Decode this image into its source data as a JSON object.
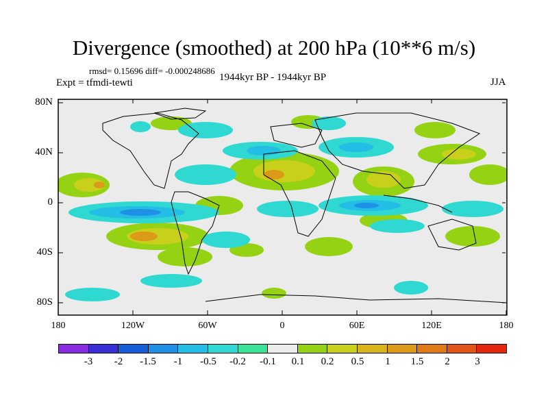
{
  "title": "Divergence (smoothed) at 200 hPa (10**6 m/s)",
  "stats": "rmsd= 0.15696 diff= -0.000248686",
  "experiment": "Expt = tfmdi-tewti",
  "period": "1944kyr BP - 1944kyr BP",
  "season": "JJA",
  "y_axis_labels": [
    "80N",
    "40N",
    "0",
    "40S",
    "80S"
  ],
  "x_axis_labels": [
    "180",
    "120W",
    "60W",
    "0",
    "60E",
    "120E",
    "180"
  ],
  "colorbar": {
    "colors": [
      "#8a2be2",
      "#3a2fd6",
      "#1560d8",
      "#1e90e6",
      "#23bde6",
      "#2fd8d0",
      "#3ae29a",
      "#ebebeb",
      "#96d214",
      "#c8d01c",
      "#d8b41a",
      "#dc9a18",
      "#df7a17",
      "#e25516",
      "#e3280f"
    ],
    "labels": [
      "-3",
      "-2",
      "-1.5",
      "-1",
      "-0.5",
      "-0.2",
      "-0.1",
      "0.1",
      "0.2",
      "0.5",
      "1",
      "1.5",
      "2",
      "3"
    ]
  }
}
